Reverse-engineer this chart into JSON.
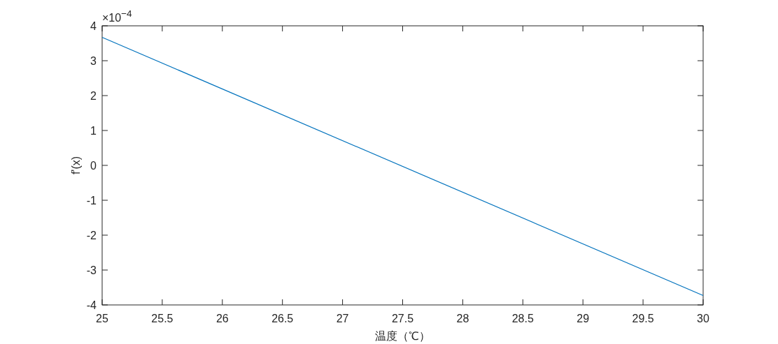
{
  "chart_data": {
    "type": "line",
    "xlabel": "温度（℃）",
    "ylabel": "f'(x)",
    "annotations": [
      "×10$^{−4}$"
    ],
    "x": [
      25,
      30
    ],
    "series": [
      {
        "color": "#0072bd",
        "values": [
          3.67,
          -3.73
        ]
      }
    ],
    "xlim": [
      25,
      30
    ],
    "xticks": [
      25,
      25.5,
      26,
      26.5,
      27,
      27.5,
      28,
      28.5,
      29,
      29.5,
      30
    ],
    "ylim": [
      -4,
      4
    ],
    "yticks": [
      -4,
      -3,
      -2,
      -1,
      0,
      1,
      2,
      3,
      4
    ],
    "grid": false,
    "marker": "none",
    "line_style": "solid"
  }
}
